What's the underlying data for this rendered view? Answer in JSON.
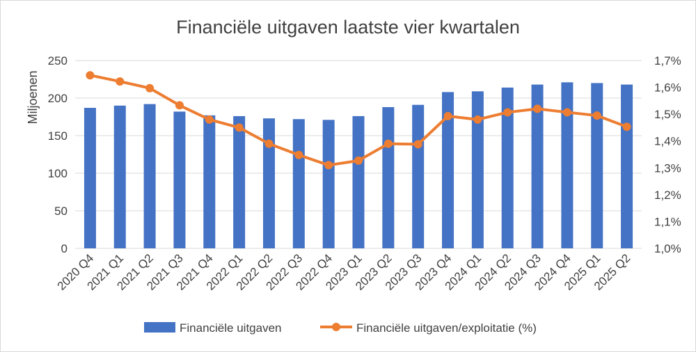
{
  "chart_data": {
    "type": "bar",
    "title": "Financiële uitgaven laatste vier kwartalen",
    "ylabel": "Miljoenen",
    "ylim": [
      0,
      250
    ],
    "y_ticks": [
      "0",
      "50",
      "100",
      "150",
      "200",
      "250"
    ],
    "y2lim": [
      1.0,
      1.7
    ],
    "y2_ticks": [
      "1,0%",
      "1,1%",
      "1,2%",
      "1,3%",
      "1,4%",
      "1,5%",
      "1,6%",
      "1,7%"
    ],
    "categories": [
      "2020 Q4",
      "2021 Q1",
      "2021 Q2",
      "2021 Q3",
      "2021 Q4",
      "2022 Q1",
      "2022 Q2",
      "2022 Q3",
      "2022 Q4",
      "2023 Q1",
      "2023 Q2",
      "2023 Q3",
      "2023 Q4",
      "2024 Q1",
      "2024 Q2",
      "2024 Q3",
      "2024 Q4",
      "2025 Q1",
      "2025 Q2"
    ],
    "grid": true,
    "legend_position": "bottom",
    "series": [
      {
        "name": "Financiële uitgaven",
        "type": "bar",
        "axis": "left",
        "color": "#4472c4",
        "values": [
          187,
          190,
          192,
          182,
          177,
          176,
          173,
          172,
          171,
          176,
          188,
          191,
          208,
          209,
          214,
          218,
          221,
          220,
          218
        ]
      },
      {
        "name": "Financiële uitgaven/exploitatie (%)",
        "type": "line",
        "axis": "right",
        "color": "#ed7d31",
        "values": [
          1.645,
          1.622,
          1.597,
          1.533,
          1.48,
          1.45,
          1.39,
          1.348,
          1.31,
          1.327,
          1.39,
          1.388,
          1.493,
          1.48,
          1.507,
          1.52,
          1.507,
          1.495,
          1.453
        ]
      }
    ]
  }
}
